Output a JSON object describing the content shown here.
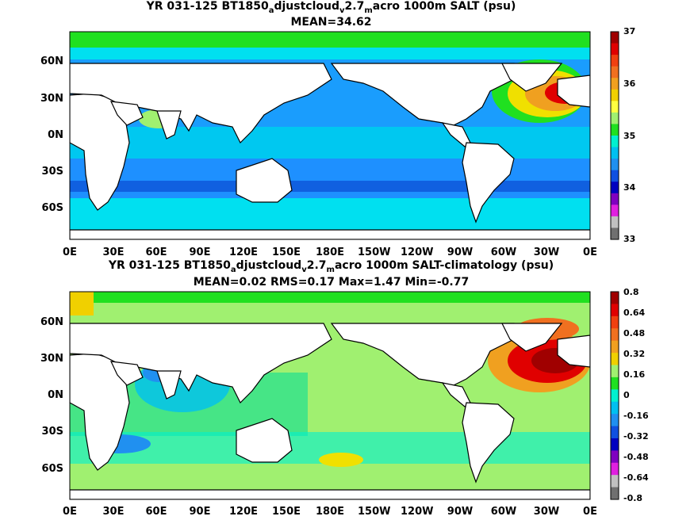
{
  "panels": [
    {
      "title_parts": [
        "YR 031-125 BT1850",
        "a",
        "djustcloud",
        "v",
        "2.7",
        "m",
        "acro 1000m SALT (psu)"
      ],
      "subtitle": "MEAN=34.62",
      "y_labels": [
        "60N",
        "30N",
        "0N",
        "30S",
        "60S"
      ],
      "x_labels": [
        "0E",
        "30E",
        "60E",
        "90E",
        "120E",
        "150E",
        "180E",
        "150W",
        "120W",
        "90W",
        "60W",
        "30W",
        "0E"
      ],
      "colorbar_labels": [
        "37",
        "36",
        "35",
        "34",
        "33"
      ],
      "colorbar_colors": [
        "#a00000",
        "#e00000",
        "#f04010",
        "#f07020",
        "#f0a020",
        "#f0d000",
        "#ffff40",
        "#a0f070",
        "#20e020",
        "#00f0d0",
        "#00c0f0",
        "#2090f0",
        "#1050e0",
        "#0000c0",
        "#8000c0",
        "#e020e0",
        "#c0c0c0",
        "#707070"
      ]
    },
    {
      "title_parts": [
        "YR 031-125 BT1850",
        "a",
        "djustcloud",
        "v",
        "2.7",
        "m",
        "acro 1000m SALT-climatology (psu)"
      ],
      "subtitle": "MEAN=0.02   RMS=0.17   Max=1.47   Min=-0.77",
      "y_labels": [
        "60N",
        "30N",
        "0N",
        "30S",
        "60S"
      ],
      "x_labels": [
        "0E",
        "30E",
        "60E",
        "90E",
        "120E",
        "150E",
        "180E",
        "150W",
        "120W",
        "90W",
        "60W",
        "30W",
        "0E"
      ],
      "colorbar_labels": [
        "0.8",
        "0.64",
        "0.48",
        "0.32",
        "0.16",
        "0",
        "-0.16",
        "-0.32",
        "-0.48",
        "-0.64",
        "-0.8"
      ],
      "colorbar_colors": [
        "#a00000",
        "#e00000",
        "#f04010",
        "#f07020",
        "#f0a020",
        "#f0d000",
        "#a0f070",
        "#20e020",
        "#00f0d0",
        "#00c0f0",
        "#2090f0",
        "#1050e0",
        "#0000c0",
        "#8000c0",
        "#e020e0",
        "#c0c0c0",
        "#707070"
      ]
    }
  ],
  "chart_data": [
    {
      "type": "heatmap",
      "title": "YR 031-125 BT1850adjustcloudv2.7macro 1000m SALT (psu)",
      "subtitle": "MEAN=34.62",
      "x_ticks": [
        "0E",
        "30E",
        "60E",
        "90E",
        "120E",
        "150E",
        "180E",
        "150W",
        "120W",
        "90W",
        "60W",
        "30W",
        "0E"
      ],
      "y_ticks": [
        "60N",
        "30N",
        "0N",
        "30S",
        "60S"
      ],
      "colorbar_range": [
        33,
        37
      ],
      "colorbar_ticks": [
        37,
        36,
        35,
        34,
        33
      ]
    },
    {
      "type": "heatmap",
      "title": "YR 031-125 BT1850adjustcloudv2.7macro 1000m SALT-climatology (psu)",
      "subtitle": "MEAN=0.02 RMS=0.17 Max=1.47 Min=-0.77",
      "x_ticks": [
        "0E",
        "30E",
        "60E",
        "90E",
        "120E",
        "150E",
        "180E",
        "150W",
        "120W",
        "90W",
        "60W",
        "30W",
        "0E"
      ],
      "y_ticks": [
        "60N",
        "30N",
        "0N",
        "30S",
        "60S"
      ],
      "colorbar_range": [
        -0.8,
        0.8
      ],
      "colorbar_ticks": [
        0.8,
        0.64,
        0.48,
        0.32,
        0.16,
        0,
        -0.16,
        -0.32,
        -0.48,
        -0.64,
        -0.8
      ]
    }
  ]
}
